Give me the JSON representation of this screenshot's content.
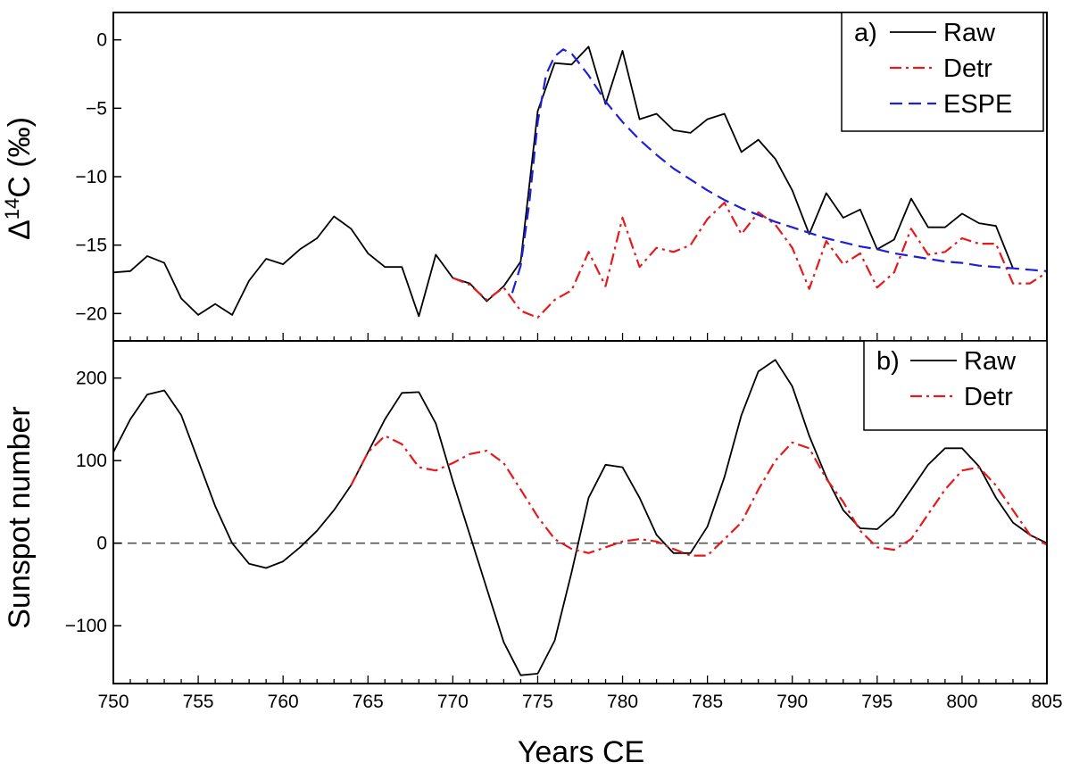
{
  "chart_data": [
    {
      "type": "line",
      "panel_label": "a)",
      "ylabel_pre": "Δ",
      "ylabel_sup": "14",
      "ylabel_post": "C (‰)",
      "xlim": [
        750,
        805
      ],
      "ylim": [
        -22,
        2
      ],
      "yticks": [
        0,
        -5,
        -10,
        -15,
        -20
      ],
      "legend_position": "top-right",
      "series": [
        {
          "name": "Raw",
          "color": "#000000",
          "dash": "solid",
          "x": [
            750,
            751,
            752,
            753,
            754,
            755,
            756,
            757,
            758,
            759,
            760,
            761,
            762,
            763,
            764,
            765,
            766,
            767,
            768,
            769,
            770,
            771,
            772,
            773,
            774,
            775,
            776,
            777,
            778,
            779,
            780,
            781,
            782,
            783,
            784,
            785,
            786,
            787,
            788,
            789,
            790,
            791,
            792,
            793,
            794,
            795,
            796,
            797,
            798,
            799,
            800,
            801,
            802,
            803
          ],
          "y": [
            -17.0,
            -16.9,
            -15.8,
            -16.3,
            -18.9,
            -20.1,
            -19.3,
            -20.1,
            -17.6,
            -16.0,
            -16.4,
            -15.3,
            -14.5,
            -12.9,
            -13.8,
            -15.6,
            -16.6,
            -16.6,
            -20.2,
            -15.7,
            -17.4,
            -17.8,
            -19.1,
            -18.0,
            -16.2,
            -5.2,
            -1.7,
            -1.8,
            -0.5,
            -4.7,
            -0.8,
            -5.8,
            -5.4,
            -6.6,
            -6.8,
            -5.8,
            -5.4,
            -8.2,
            -7.3,
            -8.7,
            -11.0,
            -14.2,
            -11.2,
            -13.0,
            -12.4,
            -15.3,
            -14.6,
            -11.6,
            -13.7,
            -13.7,
            -12.7,
            -13.4,
            -13.6,
            -16.7
          ]
        },
        {
          "name": "Detr",
          "color": "#e41a1c",
          "dash": "dashdot",
          "x": [
            770,
            771,
            772,
            773,
            774,
            775,
            776,
            777,
            778,
            779,
            780,
            781,
            782,
            783,
            784,
            785,
            786,
            787,
            788,
            789,
            790,
            791,
            792,
            793,
            794,
            795,
            796,
            797,
            798,
            799,
            800,
            801,
            802,
            803,
            804,
            805
          ],
          "y": [
            -17.4,
            -17.9,
            -19.0,
            -18.1,
            -19.8,
            -20.3,
            -19.0,
            -18.3,
            -15.5,
            -18.0,
            -13.0,
            -16.6,
            -15.2,
            -15.5,
            -15.0,
            -13.1,
            -11.9,
            -14.2,
            -12.6,
            -13.5,
            -15.2,
            -18.2,
            -14.7,
            -16.4,
            -15.6,
            -18.1,
            -17.0,
            -13.8,
            -15.7,
            -15.5,
            -14.5,
            -14.9,
            -14.9,
            -17.8,
            -17.8,
            -17.0
          ]
        },
        {
          "name": "ESPE",
          "color": "#1f1fd6",
          "dash": "dashed",
          "x": [
            773.5,
            774,
            774.5,
            775,
            775.5,
            776,
            776.5,
            777,
            778,
            779,
            780,
            781,
            782,
            783,
            784,
            785,
            786,
            787,
            788,
            789,
            790,
            791,
            792,
            793,
            794,
            795,
            796,
            797,
            798,
            799,
            800,
            801,
            802,
            803,
            804,
            805
          ],
          "y": [
            -18.5,
            -16.5,
            -12.0,
            -6.0,
            -2.5,
            -1.2,
            -0.7,
            -1.0,
            -2.6,
            -4.5,
            -6.0,
            -7.3,
            -8.4,
            -9.4,
            -10.2,
            -11.0,
            -11.7,
            -12.3,
            -12.8,
            -13.3,
            -13.7,
            -14.1,
            -14.5,
            -14.8,
            -15.1,
            -15.3,
            -15.6,
            -15.8,
            -16.0,
            -16.2,
            -16.3,
            -16.5,
            -16.6,
            -16.7,
            -16.8,
            -16.9
          ]
        }
      ]
    },
    {
      "type": "line",
      "panel_label": "b)",
      "ylabel": "Sunspot number",
      "xlabel": "Years CE",
      "xlim": [
        750,
        805
      ],
      "ylim": [
        -170,
        245
      ],
      "yticks": [
        200,
        100,
        0,
        -100
      ],
      "xticks": [
        750,
        755,
        760,
        765,
        770,
        775,
        780,
        785,
        790,
        795,
        800,
        805
      ],
      "zero_line": true,
      "legend_position": "top-right",
      "series": [
        {
          "name": "Raw",
          "color": "#000000",
          "dash": "solid",
          "x": [
            750,
            751,
            752,
            753,
            754,
            755,
            756,
            757,
            758,
            759,
            760,
            761,
            762,
            763,
            764,
            765,
            766,
            767,
            768,
            769,
            770,
            771,
            772,
            773,
            774,
            775,
            776,
            777,
            778,
            779,
            780,
            781,
            782,
            783,
            784,
            785,
            786,
            787,
            788,
            789,
            790,
            791,
            792,
            793,
            794,
            795,
            796,
            797,
            798,
            799,
            800,
            801,
            802,
            803,
            804,
            805
          ],
          "y": [
            110,
            150,
            180,
            185,
            155,
            100,
            45,
            0,
            -25,
            -30,
            -22,
            -5,
            15,
            40,
            70,
            110,
            150,
            182,
            183,
            145,
            75,
            10,
            -55,
            -120,
            -160,
            -158,
            -118,
            -35,
            55,
            95,
            92,
            55,
            10,
            -12,
            -12,
            20,
            80,
            155,
            208,
            222,
            190,
            130,
            80,
            40,
            18,
            17,
            35,
            65,
            95,
            115,
            115,
            93,
            55,
            25,
            10,
            0
          ]
        },
        {
          "name": "Detr",
          "color": "#e41a1c",
          "dash": "dashdot",
          "x": [
            764,
            765,
            766,
            767,
            768,
            769,
            770,
            771,
            772,
            773,
            774,
            775,
            776,
            777,
            778,
            779,
            780,
            781,
            782,
            783,
            784,
            785,
            786,
            787,
            788,
            789,
            790,
            791,
            792,
            793,
            794,
            795,
            796,
            797,
            798,
            799,
            800,
            801,
            802,
            803,
            804,
            805
          ],
          "y": [
            70,
            110,
            130,
            120,
            92,
            88,
            97,
            108,
            112,
            97,
            65,
            32,
            5,
            -7,
            -12,
            -5,
            2,
            5,
            2,
            -7,
            -15,
            -15,
            5,
            25,
            65,
            100,
            122,
            115,
            78,
            50,
            15,
            -5,
            -8,
            5,
            35,
            65,
            88,
            92,
            70,
            40,
            10,
            -2
          ]
        }
      ]
    }
  ]
}
